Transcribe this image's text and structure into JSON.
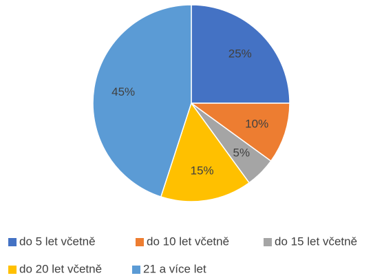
{
  "chart_data": {
    "type": "pie",
    "categories": [
      "do 5 let včetně",
      "do 10 let včetně",
      "do 15 let včetně",
      "do 20 let včetně",
      "21 a více let"
    ],
    "values": [
      25,
      10,
      5,
      15,
      45
    ],
    "value_labels": [
      "25%",
      "10%",
      "5%",
      "15%",
      "45%"
    ],
    "colors": [
      "#4472c4",
      "#ed7d31",
      "#a5a5a5",
      "#ffc000",
      "#5b9bd5"
    ],
    "legend": "bottom"
  }
}
